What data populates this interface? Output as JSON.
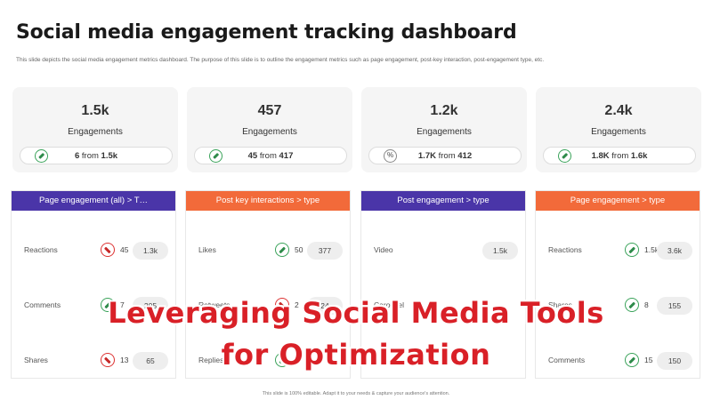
{
  "slide": {
    "title": "Social media engagement tracking dashboard",
    "subtitle": "This slide depicts the social media engagement  metrics dashboard. The purpose of this slide is to outline the engagement  metrics such as page engagement,   post-key interaction, post-engagement  type,  etc.",
    "footer": "This slide is 100% editable. Adapt it to your needs & capture your audience's attention."
  },
  "cards": [
    {
      "value": "1.5k",
      "label": "Engagements",
      "icon": "pencil-icon",
      "from_value": "6",
      "from_word": "from",
      "from_total": "1.5k"
    },
    {
      "value": "457",
      "label": "Engagements",
      "icon": "pencil-icon",
      "from_value": "45",
      "from_word": "from",
      "from_total": "417"
    },
    {
      "value": "1.2k",
      "label": "Engagements",
      "icon": "percent-icon",
      "icon_text": "%",
      "from_value": "1.7K",
      "from_word": "from",
      "from_total": "412"
    },
    {
      "value": "2.4k",
      "label": "Engagements",
      "icon": "pencil-icon",
      "from_value": "1.8K",
      "from_word": "from",
      "from_total": "1.6k"
    }
  ],
  "panels": [
    {
      "header": "Page engagement (all) > T…",
      "color": "#4a35a8",
      "rows": [
        {
          "label": "Reactions",
          "icon": "red-arrow-icon",
          "v1": "45",
          "v2": "1.3k"
        },
        {
          "label": "Comments",
          "icon": "pencil-icon",
          "v1": "7",
          "v2": "205"
        },
        {
          "label": "Shares",
          "icon": "red-arrow-icon",
          "v1": "13",
          "v2": "65"
        }
      ]
    },
    {
      "header": "Post key interactions > type",
      "color": "#f26a3a",
      "rows": [
        {
          "label": "Likes",
          "icon": "pencil-icon",
          "v1": "50",
          "v2": "377"
        },
        {
          "label": "Retweets",
          "icon": "red-arrow-icon",
          "v1": "2",
          "v2": "24"
        },
        {
          "label": "Replies",
          "icon": "pencil-icon",
          "v1": "",
          "v2": ""
        }
      ]
    },
    {
      "header": "Post engagement > type",
      "color": "#4a35a8",
      "rows": [
        {
          "label": "Video",
          "icon": "",
          "v1": "",
          "v2": "1.5k"
        },
        {
          "label": "Carousel",
          "icon": "",
          "v1": "",
          "v2": ""
        },
        {
          "label": "",
          "icon": "",
          "v1": "",
          "v2": ""
        }
      ]
    },
    {
      "header": "Page engagement > type",
      "color": "#f26a3a",
      "rows": [
        {
          "label": "Reactions",
          "icon": "pencil-icon",
          "v1": "1.5k",
          "v2": "3.6k"
        },
        {
          "label": "Shares",
          "icon": "pencil-icon",
          "v1": "8",
          "v2": "155"
        },
        {
          "label": "Comments",
          "icon": "pencil-icon",
          "v1": "15",
          "v2": "150"
        }
      ]
    }
  ],
  "overlay": {
    "line1": "Leveraging Social Media Tools",
    "line2": "for Optimization",
    "color": "#d92027"
  }
}
